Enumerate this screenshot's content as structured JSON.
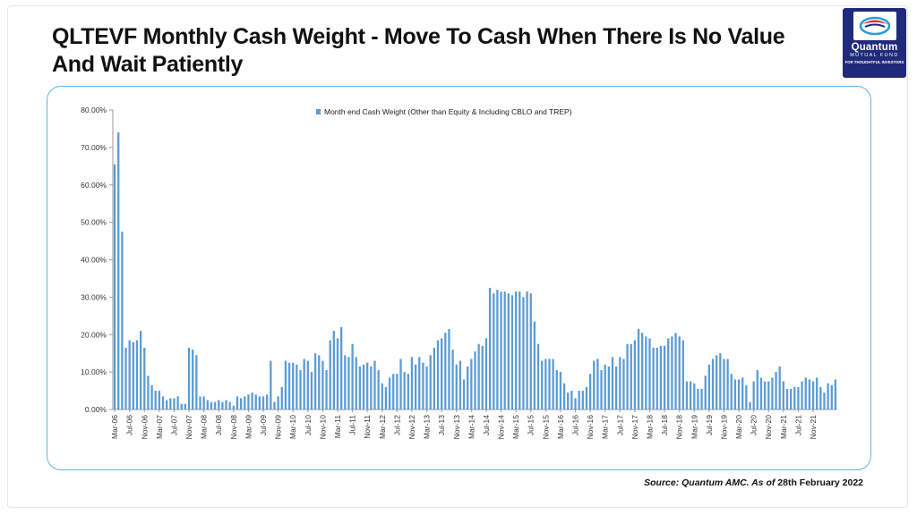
{
  "slide": {
    "title": "QLTEVF Monthly Cash Weight - Move To Cash When There Is No Value And Wait Patiently",
    "source_label": "Source: Quantum AMC. As of",
    "source_date": " 28th February 2022"
  },
  "logo": {
    "brand": "Quantum",
    "sub": "MUTUAL FUND",
    "tagline": "FOR THOUGHTFUL INVESTORS",
    "colors": {
      "background": "#1f2a7a",
      "accent_red": "#e03030",
      "accent_blue": "#2a9bd8"
    }
  },
  "chart_data": {
    "type": "bar",
    "legend": "Month end Cash Weight (Other than Equity & Including CBLO and TREP)",
    "legend_position": "top-center",
    "bar_color": "#5b9bd5",
    "ylim": [
      0,
      80
    ],
    "yticks": [
      "0.00%",
      "10.00%",
      "20.00%",
      "30.00%",
      "40.00%",
      "50.00%",
      "60.00%",
      "70.00%",
      "80.00%"
    ],
    "xtick_labels": [
      "Mar-06",
      "Jul-06",
      "Nov-06",
      "Mar-07",
      "Jul-07",
      "Nov-07",
      "Mar-08",
      "Jul-08",
      "Nov-08",
      "Mar-09",
      "Jul-09",
      "Nov-09",
      "Mar-10",
      "Jul-10",
      "Nov-10",
      "Mar-11",
      "Jul-11",
      "Nov-11",
      "Mar-12",
      "Jul-12",
      "Nov-12",
      "Mar-13",
      "Jul-13",
      "Nov-13",
      "Mar-14",
      "Jul-14",
      "Nov-14",
      "Mar-15",
      "Jul-15",
      "Nov-15",
      "Mar-16",
      "Jul-16",
      "Nov-16",
      "Mar-17",
      "Jul-17",
      "Nov-17",
      "Mar-18",
      "Jul-18",
      "Nov-18",
      "Mar-19",
      "Jul-19",
      "Nov-19",
      "Mar-20",
      "Jul-20",
      "Nov-20",
      "Mar-21",
      "Jul-21",
      "Nov-21"
    ],
    "x_start": "Mar-06",
    "x_end": "Feb-22",
    "values": [
      65.5,
      74.0,
      47.5,
      16.5,
      18.5,
      18.0,
      18.5,
      21.0,
      16.5,
      9.0,
      6.5,
      5.0,
      5.0,
      3.5,
      2.5,
      3.0,
      3.0,
      3.5,
      1.5,
      1.5,
      16.5,
      16.0,
      14.5,
      3.5,
      3.5,
      2.5,
      2.0,
      2.0,
      2.5,
      2.0,
      2.5,
      2.0,
      1.0,
      3.5,
      3.0,
      3.5,
      4.0,
      4.5,
      4.0,
      3.5,
      3.5,
      4.0,
      13.0,
      2.0,
      3.5,
      6.0,
      13.0,
      12.5,
      12.5,
      12.0,
      10.5,
      13.5,
      13.0,
      10.0,
      15.0,
      14.5,
      13.0,
      10.5,
      18.5,
      21.0,
      19.0,
      22.0,
      14.5,
      14.0,
      17.5,
      14.0,
      11.5,
      12.0,
      12.5,
      11.5,
      13.0,
      10.5,
      7.0,
      6.0,
      8.5,
      9.5,
      9.5,
      13.5,
      10.0,
      9.5,
      14.0,
      12.0,
      14.0,
      12.5,
      11.5,
      14.5,
      16.5,
      18.5,
      19.0,
      20.5,
      21.5,
      16.0,
      12.0,
      13.0,
      8.0,
      11.5,
      13.5,
      15.5,
      17.5,
      17.0,
      19.0,
      32.5,
      31.0,
      32.0,
      31.5,
      31.5,
      31.0,
      30.5,
      31.5,
      31.5,
      30.0,
      31.5,
      31.0,
      23.5,
      17.5,
      13.0,
      13.5,
      13.5,
      13.5,
      10.5,
      10.0,
      7.0,
      4.5,
      5.0,
      3.0,
      5.0,
      5.0,
      6.0,
      9.5,
      13.0,
      13.5,
      10.5,
      12.0,
      11.5,
      14.0,
      11.5,
      14.0,
      13.5,
      17.5,
      17.5,
      18.5,
      21.5,
      20.5,
      19.5,
      19.0,
      16.5,
      16.5,
      17.0,
      17.0,
      19.0,
      19.5,
      20.5,
      19.5,
      18.5,
      7.5,
      7.5,
      7.0,
      5.5,
      5.5,
      9.0,
      12.0,
      13.5,
      14.5,
      15.0,
      13.5,
      13.5,
      9.5,
      8.0,
      8.0,
      8.5,
      6.5,
      2.0,
      7.5,
      10.5,
      8.5,
      7.5,
      7.5,
      8.5,
      10.0,
      11.5,
      7.5,
      5.5,
      5.5,
      6.0,
      6.0,
      7.5,
      8.5,
      8.0,
      7.5,
      8.5,
      6.0,
      4.5,
      7.0,
      6.5,
      8.0
    ]
  }
}
